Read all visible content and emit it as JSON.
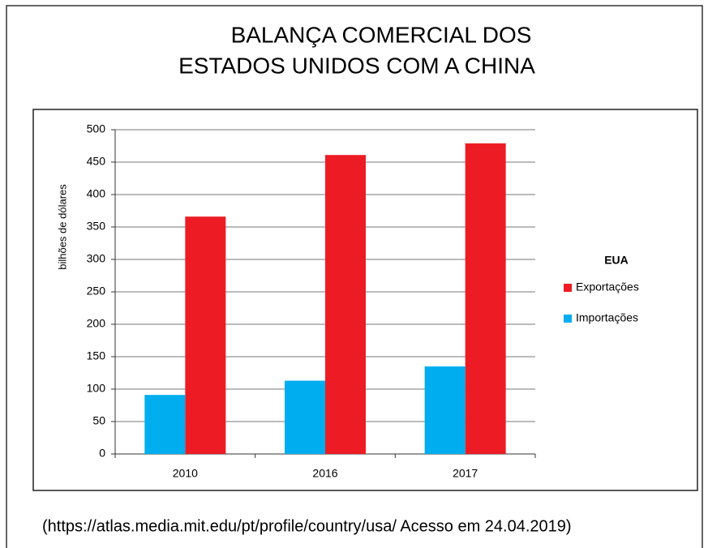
{
  "chart_data": {
    "type": "bar",
    "title": [
      "BALANÇA COMERCIAL DOS",
      "ESTADOS  UNIDOS COM A CHINA"
    ],
    "y_label": "bilhões de dólares",
    "categories": [
      "2010",
      "2016",
      "2017"
    ],
    "legend_title": "EUA",
    "series": [
      {
        "name": "Exportações",
        "color": "#ed1c24",
        "values": [
          366,
          461,
          479
        ]
      },
      {
        "name": "Importações",
        "color": "#00aeef",
        "values": [
          91,
          113,
          135
        ]
      }
    ],
    "ylim": [
      0,
      500
    ],
    "yticks": [
      0,
      50,
      100,
      150,
      200,
      250,
      300,
      350,
      400,
      450,
      500
    ],
    "grid": true,
    "legend": "right",
    "source": "(https://atlas.media.mit.edu/pt/profile/country/usa/ Acesso em 24.04.2019)"
  }
}
